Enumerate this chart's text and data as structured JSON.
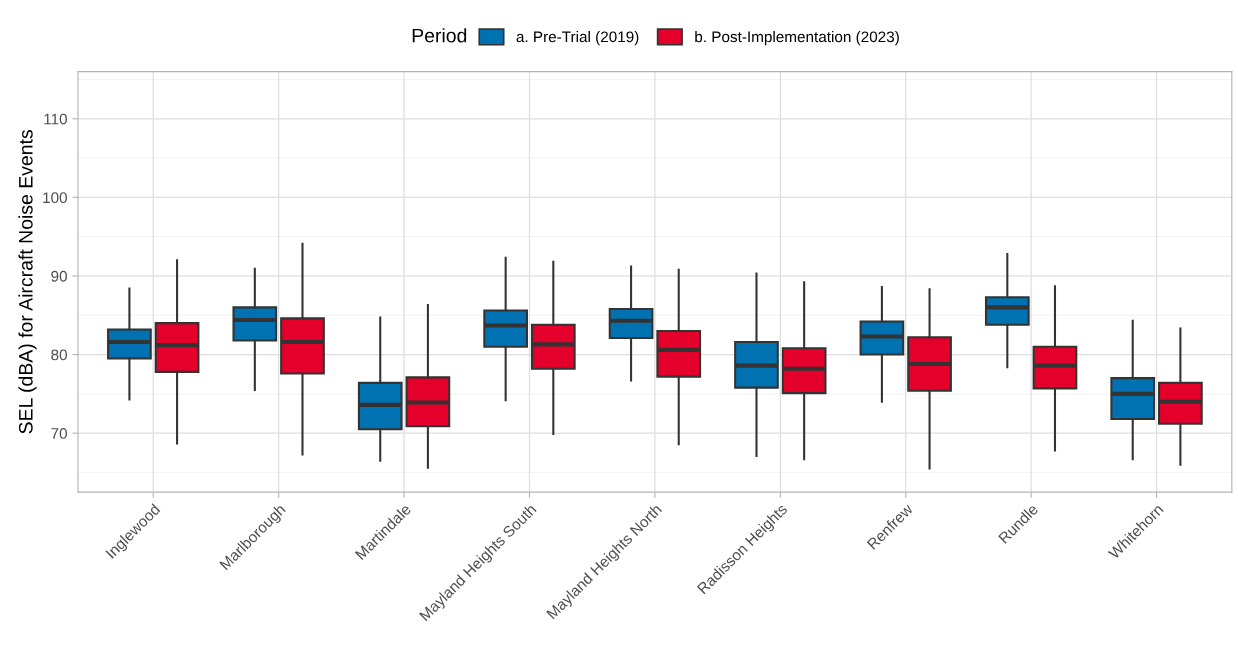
{
  "chart_data": {
    "type": "box",
    "ylabel": "SEL (dBA) for Aircraft Noise Events",
    "legend_title": "Period",
    "legend": "top",
    "grid": true,
    "categories": [
      "Inglewood",
      "Marlborough",
      "Martindale",
      "Mayland Heights South",
      "Mayland Heights North",
      "Radisson Heights",
      "Renfrew",
      "Rundle",
      "Whitehorn"
    ],
    "ylim": [
      62.5,
      116
    ],
    "yticks": [
      70,
      80,
      90,
      100,
      110
    ],
    "series": [
      {
        "name": "a. Pre-Trial (2019)",
        "color": "#0072b2",
        "boxes": [
          {
            "low": 74.3,
            "q1": 79.5,
            "median": 81.6,
            "q3": 83.2,
            "high": 88.4
          },
          {
            "low": 75.5,
            "q1": 81.8,
            "median": 84.4,
            "q3": 86.0,
            "high": 90.9
          },
          {
            "low": 66.5,
            "q1": 70.5,
            "median": 73.6,
            "q3": 76.4,
            "high": 84.7
          },
          {
            "low": 74.2,
            "q1": 81.0,
            "median": 83.7,
            "q3": 85.6,
            "high": 92.3
          },
          {
            "low": 76.7,
            "q1": 82.1,
            "median": 84.3,
            "q3": 85.8,
            "high": 91.2
          },
          {
            "low": 67.1,
            "q1": 75.8,
            "median": 78.6,
            "q3": 81.6,
            "high": 90.3
          },
          {
            "low": 74.0,
            "q1": 80.0,
            "median": 82.3,
            "q3": 84.2,
            "high": 88.6
          },
          {
            "low": 78.4,
            "q1": 83.8,
            "median": 86.0,
            "q3": 87.3,
            "high": 92.8
          },
          {
            "low": 66.7,
            "q1": 71.8,
            "median": 75.0,
            "q3": 77.0,
            "high": 84.3
          }
        ]
      },
      {
        "name": "b. Post-Implementation (2023)",
        "color": "#e4002b",
        "boxes": [
          {
            "low": 68.7,
            "q1": 77.8,
            "median": 81.2,
            "q3": 84.0,
            "high": 92.0
          },
          {
            "low": 67.3,
            "q1": 77.6,
            "median": 81.6,
            "q3": 84.6,
            "high": 94.1
          },
          {
            "low": 65.6,
            "q1": 70.9,
            "median": 73.9,
            "q3": 77.1,
            "high": 86.3
          },
          {
            "low": 69.9,
            "q1": 78.2,
            "median": 81.3,
            "q3": 83.8,
            "high": 91.8
          },
          {
            "low": 68.6,
            "q1": 77.2,
            "median": 80.6,
            "q3": 83.0,
            "high": 90.8
          },
          {
            "low": 66.7,
            "q1": 75.1,
            "median": 78.2,
            "q3": 80.8,
            "high": 89.2
          },
          {
            "low": 65.5,
            "q1": 75.4,
            "median": 78.8,
            "q3": 82.2,
            "high": 88.3
          },
          {
            "low": 67.8,
            "q1": 75.7,
            "median": 78.6,
            "q3": 81.0,
            "high": 88.7
          },
          {
            "low": 66.0,
            "q1": 71.2,
            "median": 74.0,
            "q3": 76.4,
            "high": 83.3
          }
        ]
      }
    ]
  }
}
